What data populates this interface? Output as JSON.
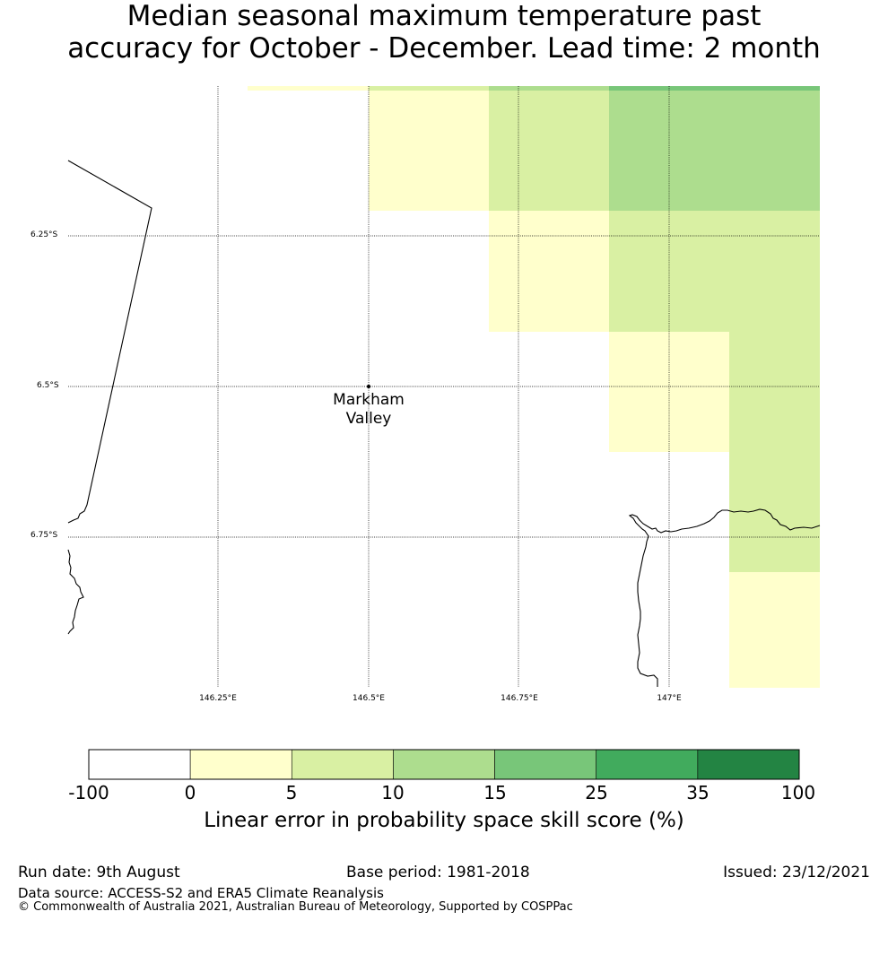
{
  "title": {
    "line1": "Median seasonal maximum temperature past",
    "line2": "accuracy for October - December. Lead time: 2 month"
  },
  "map": {
    "lat_labels": [
      "6.25°S",
      "6.5°S",
      "6.75°S"
    ],
    "lon_labels": [
      "146.25°E",
      "146.5°E",
      "146.75°E",
      "147°E"
    ],
    "place": {
      "name_line1": "Markham",
      "name_line2": "Valley"
    }
  },
  "colorbar": {
    "ticks": [
      "-100",
      "0",
      "5",
      "10",
      "15",
      "25",
      "35",
      "100"
    ],
    "colors": [
      "#ffffff",
      "#ffffcc",
      "#d9f0a3",
      "#addd8e",
      "#78c679",
      "#41ab5d",
      "#238443"
    ],
    "label": "Linear error in probability space skill score (%)"
  },
  "footer": {
    "run_date": "Run date: 9th August",
    "base_period": "Base period: 1981-2018",
    "issued": "Issued: 23/12/2021",
    "data_source": "Data source: ACCESS-S2 and ERA5 Climate Reanalysis",
    "copyright": "© Commonwealth of Australia 2021, Australian Bureau of Meteorology, Supported by COSPPac"
  }
}
